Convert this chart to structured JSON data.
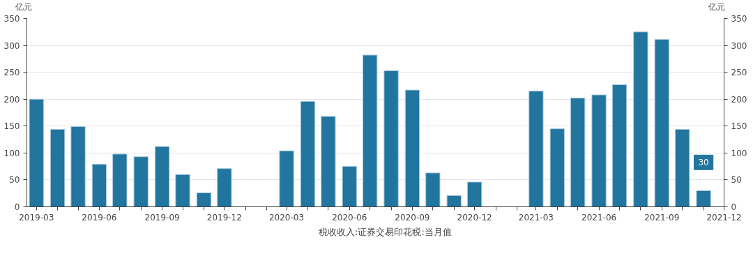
{
  "chart_data": {
    "type": "bar",
    "ylabel": "亿元",
    "y2label": "亿元",
    "x": [
      "2019-03",
      "2019-04",
      "2019-05",
      "2019-06",
      "2019-07",
      "2019-08",
      "2019-09",
      "2019-10",
      "2019-11",
      "2019-12",
      "2020-01",
      "2020-02",
      "2020-03",
      "2020-04",
      "2020-05",
      "2020-06",
      "2020-07",
      "2020-08",
      "2020-09",
      "2020-10",
      "2020-11",
      "2020-12",
      "2021-01",
      "2021-02",
      "2021-03",
      "2021-04",
      "2021-05",
      "2021-06",
      "2021-07",
      "2021-08",
      "2021-09",
      "2021-10",
      "2021-11"
    ],
    "series": [
      {
        "name": "税收收入:证券交易印花税:当月值",
        "color": "#21759f",
        "values": [
          200,
          144,
          149,
          79,
          98,
          93,
          112,
          60,
          26,
          71,
          null,
          null,
          104,
          196,
          168,
          75,
          282,
          253,
          217,
          63,
          21,
          46,
          null,
          null,
          215,
          145,
          202,
          208,
          227,
          325,
          311,
          144,
          30
        ]
      }
    ],
    "xlim": [
      "2019-02-15",
      "2021-12"
    ],
    "xticks": [
      {
        "value": "2019-03",
        "label": "2019-03"
      },
      {
        "value": "2019-04",
        "label": null
      },
      {
        "value": "2019-05",
        "label": null
      },
      {
        "value": "2019-06",
        "label": "2019-06"
      },
      {
        "value": "2019-07",
        "label": null
      },
      {
        "value": "2019-08",
        "label": null
      },
      {
        "value": "2019-09",
        "label": "2019-09"
      },
      {
        "value": "2019-10",
        "label": null
      },
      {
        "value": "2019-11",
        "label": null
      },
      {
        "value": "2019-12",
        "label": "2019-12"
      },
      {
        "value": "2020-01",
        "label": null
      },
      {
        "value": "2020-02",
        "label": null
      },
      {
        "value": "2020-03",
        "label": "2020-03"
      },
      {
        "value": "2020-04",
        "label": null
      },
      {
        "value": "2020-05",
        "label": null
      },
      {
        "value": "2020-06",
        "label": "2020-06"
      },
      {
        "value": "2020-07",
        "label": null
      },
      {
        "value": "2020-08",
        "label": null
      },
      {
        "value": "2020-09",
        "label": "2020-09"
      },
      {
        "value": "2020-10",
        "label": null
      },
      {
        "value": "2020-11",
        "label": null
      },
      {
        "value": "2020-12",
        "label": "2020-12"
      },
      {
        "value": "2021-01",
        "label": null
      },
      {
        "value": "2021-02",
        "label": null
      },
      {
        "value": "2021-03",
        "label": "2021-03"
      },
      {
        "value": "2021-04",
        "label": null
      },
      {
        "value": "2021-05",
        "label": null
      },
      {
        "value": "2021-06",
        "label": "2021-06"
      },
      {
        "value": "2021-07",
        "label": null
      },
      {
        "value": "2021-08",
        "label": null
      },
      {
        "value": "2021-09",
        "label": "2021-09"
      },
      {
        "value": "2021-10",
        "label": null
      },
      {
        "value": "2021-11",
        "label": null
      },
      {
        "value": "2021-12",
        "label": "2021-12"
      }
    ],
    "ylim": [
      0,
      350
    ],
    "yticks": [
      0,
      50,
      100,
      150,
      200,
      250,
      300,
      350
    ],
    "y2lim": [
      0,
      350
    ],
    "y2ticks": [
      0,
      50,
      100,
      150,
      200,
      250,
      300,
      350
    ],
    "grid": "y",
    "legend": "bottom",
    "annotations": [
      {
        "text": "30",
        "x": "2021-11",
        "y": 30
      }
    ]
  }
}
